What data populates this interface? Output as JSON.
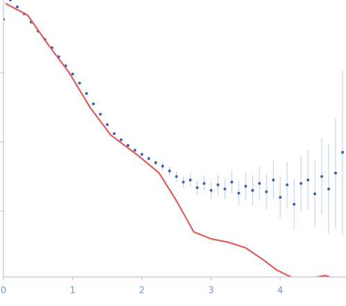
{
  "chart_data": {
    "type": "scatter",
    "xlim": [
      -0.05,
      4.95
    ],
    "xticks": [
      0,
      1,
      2,
      3,
      4
    ],
    "ylim": [
      -3.95,
      0.05
    ],
    "yticks": [
      -3,
      -2,
      -1
    ],
    "series": [
      {
        "type": "scatter",
        "color": "#3a5fb8",
        "error_color": "#bccbe6",
        "x": [
          0.0,
          0.1,
          0.2,
          0.3,
          0.4,
          0.5,
          0.6,
          0.7,
          0.8,
          0.9,
          1.0,
          1.1,
          1.2,
          1.3,
          1.4,
          1.5,
          1.6,
          1.7,
          1.8,
          1.9,
          2.0,
          2.1,
          2.2,
          2.3,
          2.4,
          2.5,
          2.6,
          2.7,
          2.8,
          2.9,
          3.0,
          3.1,
          3.2,
          3.3,
          3.4,
          3.5,
          3.6,
          3.7,
          3.8,
          3.9,
          4.0,
          4.1,
          4.2,
          4.3,
          4.4,
          4.5,
          4.6,
          4.7,
          4.8,
          4.9
        ],
        "values": [
          -0.23,
          0.05,
          -0.05,
          -0.15,
          -0.27,
          -0.4,
          -0.52,
          -0.64,
          -0.77,
          -0.9,
          -1.02,
          -1.15,
          -1.3,
          -1.45,
          -1.6,
          -1.75,
          -1.88,
          -1.97,
          -2.05,
          -2.12,
          -2.18,
          -2.24,
          -2.3,
          -2.35,
          -2.42,
          -2.5,
          -2.58,
          -2.55,
          -2.66,
          -2.6,
          -2.7,
          -2.62,
          -2.68,
          -2.58,
          -2.74,
          -2.64,
          -2.7,
          -2.6,
          -2.72,
          -2.55,
          -2.8,
          -2.62,
          -2.9,
          -2.6,
          -2.55,
          -2.75,
          -2.5,
          -2.68,
          -2.45,
          -2.15
        ],
        "errors": [
          0,
          0,
          0,
          0,
          0,
          0,
          0,
          0,
          0,
          0,
          0,
          0,
          0,
          0,
          0,
          0,
          0,
          0,
          0,
          0,
          0.02,
          0.03,
          0.04,
          0.05,
          0.06,
          0.07,
          0.08,
          0.09,
          0.1,
          0.11,
          0.12,
          0.14,
          0.15,
          0.17,
          0.18,
          0.2,
          0.22,
          0.24,
          0.26,
          0.28,
          0.3,
          0.33,
          0.36,
          0.4,
          0.44,
          0.48,
          0.55,
          0.65,
          0.8,
          1.2
        ]
      },
      {
        "type": "line",
        "color": "#e05a5a",
        "x": [
          0.03,
          0.35,
          0.65,
          0.95,
          1.25,
          1.55,
          1.95,
          2.25,
          2.5,
          2.75,
          3.0,
          3.25,
          3.5,
          3.75,
          3.95,
          4.25,
          4.65,
          4.8
        ],
        "values": [
          0.0,
          -0.17,
          -0.6,
          -1.0,
          -1.5,
          -1.9,
          -2.2,
          -2.45,
          -2.85,
          -3.3,
          -3.4,
          -3.45,
          -3.53,
          -3.7,
          -3.85,
          -4.0,
          -3.93,
          -3.98
        ]
      }
    ]
  }
}
